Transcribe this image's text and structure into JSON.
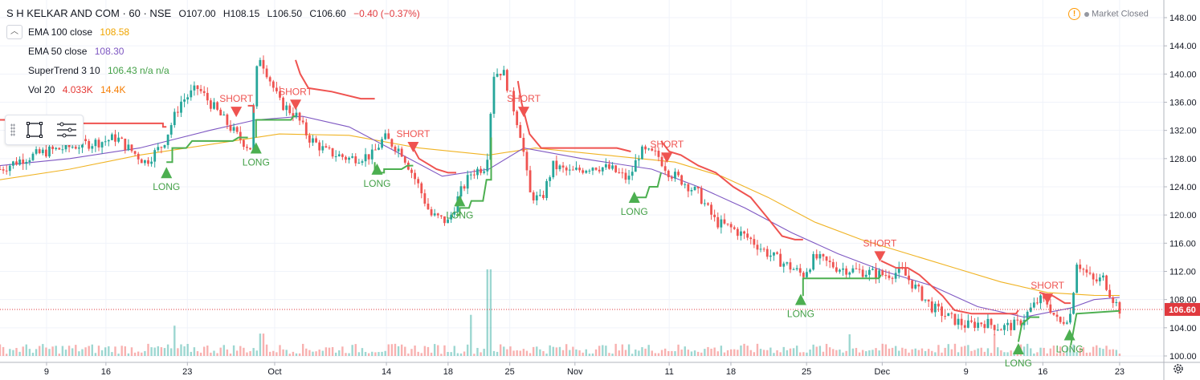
{
  "header": {
    "symbol": "S H KELKAR AND COM · 60 · NSE",
    "open": "O107.00",
    "high": "H108.15",
    "low": "L106.50",
    "close": "C106.60",
    "change": "−0.40 (−0.37%)"
  },
  "indicators": [
    {
      "name": "EMA 100 close",
      "value": "108.58",
      "color": "#f0b323"
    },
    {
      "name": "EMA 50 close",
      "value": "108.30",
      "color": "#7e57c2"
    },
    {
      "name": "SuperTrend 3 10",
      "value": "106.43  n/a  n/a",
      "color": "#4caf50"
    },
    {
      "name": "Vol 20",
      "value": "4.033K",
      "value2": "14.4K",
      "color": "#ef5350",
      "color2": "#ff6d00"
    }
  ],
  "collapse_icon": "chevron-up-icon",
  "toolbar": {
    "icons": [
      "grip-icon",
      "rectangle-select-icon",
      "list-lines-icon"
    ]
  },
  "market_status": {
    "text": "Market Closed",
    "icon": "warning-icon"
  },
  "colors": {
    "up": "#26a69a",
    "down": "#ef5350",
    "supertrend_up": "#4caf50",
    "supertrend_down": "#ef5350",
    "ema100": "#f0b323",
    "ema50": "#7e57c2",
    "last_price": "#e0393e"
  },
  "chart_data": {
    "type": "candlestick",
    "symbol": "S H KELKAR AND COM",
    "interval": "60",
    "exchange": "NSE",
    "last_price": 106.6,
    "ylim": [
      100,
      148
    ],
    "y_ticks": [
      100,
      104,
      108,
      112,
      116,
      120,
      124,
      128,
      132,
      136,
      140,
      144,
      148
    ],
    "y_tick_labels": [
      "100.00",
      "104.00",
      "108.00",
      "112.00",
      "116.00",
      "120.00",
      "124.00",
      "128.00",
      "132.00",
      "136.00",
      "140.00",
      "144.00",
      "148.00"
    ],
    "x_ticks": [
      "9",
      "16",
      "23",
      "Oct",
      "14",
      "18",
      "25",
      "Nov",
      "11",
      "18",
      "25",
      "Dec",
      "9",
      "16",
      "23"
    ],
    "x_tick_positions": [
      0.04,
      0.091,
      0.161,
      0.236,
      0.332,
      0.385,
      0.438,
      0.494,
      0.575,
      0.628,
      0.693,
      0.758,
      0.83,
      0.896,
      0.962
    ],
    "price_path": [
      [
        0.0,
        126.5
      ],
      [
        0.02,
        128
      ],
      [
        0.04,
        129
      ],
      [
        0.07,
        130
      ],
      [
        0.09,
        130.5
      ],
      [
        0.1,
        131
      ],
      [
        0.11,
        129.5
      ],
      [
        0.125,
        127.5
      ],
      [
        0.14,
        130
      ],
      [
        0.155,
        136
      ],
      [
        0.17,
        138
      ],
      [
        0.18,
        136
      ],
      [
        0.195,
        133
      ],
      [
        0.205,
        131
      ],
      [
        0.215,
        129.5
      ],
      [
        0.222,
        143
      ],
      [
        0.23,
        140
      ],
      [
        0.24,
        136
      ],
      [
        0.255,
        134
      ],
      [
        0.265,
        131
      ],
      [
        0.28,
        129
      ],
      [
        0.3,
        128
      ],
      [
        0.32,
        128.5
      ],
      [
        0.33,
        131
      ],
      [
        0.345,
        129
      ],
      [
        0.36,
        124
      ],
      [
        0.37,
        120
      ],
      [
        0.385,
        119
      ],
      [
        0.395,
        123
      ],
      [
        0.405,
        126
      ],
      [
        0.418,
        127
      ],
      [
        0.424,
        140
      ],
      [
        0.432,
        140.5
      ],
      [
        0.44,
        136
      ],
      [
        0.448,
        131
      ],
      [
        0.455,
        123
      ],
      [
        0.465,
        122
      ],
      [
        0.475,
        127
      ],
      [
        0.49,
        126
      ],
      [
        0.51,
        127
      ],
      [
        0.525,
        126.5
      ],
      [
        0.54,
        125
      ],
      [
        0.55,
        129
      ],
      [
        0.565,
        128.5
      ],
      [
        0.575,
        126
      ],
      [
        0.585,
        125
      ],
      [
        0.6,
        123
      ],
      [
        0.615,
        119
      ],
      [
        0.63,
        118
      ],
      [
        0.645,
        116.5
      ],
      [
        0.66,
        114.5
      ],
      [
        0.675,
        113
      ],
      [
        0.69,
        111.5
      ],
      [
        0.7,
        114
      ],
      [
        0.72,
        112.5
      ],
      [
        0.74,
        112
      ],
      [
        0.76,
        111.5
      ],
      [
        0.775,
        112
      ],
      [
        0.79,
        109
      ],
      [
        0.8,
        107
      ],
      [
        0.815,
        105.5
      ],
      [
        0.83,
        104.3
      ],
      [
        0.845,
        104.8
      ],
      [
        0.86,
        104
      ],
      [
        0.875,
        104.5
      ],
      [
        0.885,
        106.5
      ],
      [
        0.893,
        108
      ],
      [
        0.9,
        107.5
      ],
      [
        0.91,
        104.5
      ],
      [
        0.92,
        106
      ],
      [
        0.925,
        113.5
      ],
      [
        0.932,
        112
      ],
      [
        0.94,
        110.5
      ],
      [
        0.948,
        111
      ],
      [
        0.955,
        108.5
      ],
      [
        0.962,
        106.6
      ]
    ],
    "volume_spikes": [
      [
        0.15,
        4.2
      ],
      [
        0.225,
        3.1
      ],
      [
        0.42,
        12
      ],
      [
        0.405,
        5.7
      ],
      [
        0.73,
        3
      ],
      [
        0.855,
        3
      ]
    ],
    "series": [
      {
        "name": "EMA 100 close",
        "color": "#f0b323",
        "values": [
          [
            0.0,
            125
          ],
          [
            0.06,
            126.5
          ],
          [
            0.12,
            128.5
          ],
          [
            0.18,
            130
          ],
          [
            0.24,
            131.5
          ],
          [
            0.3,
            131.3
          ],
          [
            0.36,
            129.5
          ],
          [
            0.42,
            128.5
          ],
          [
            0.46,
            129.5
          ],
          [
            0.52,
            128.5
          ],
          [
            0.58,
            127.5
          ],
          [
            0.62,
            125.5
          ],
          [
            0.66,
            122.5
          ],
          [
            0.7,
            119
          ],
          [
            0.74,
            116.5
          ],
          [
            0.78,
            114.5
          ],
          [
            0.82,
            112.5
          ],
          [
            0.86,
            110.5
          ],
          [
            0.9,
            109
          ],
          [
            0.94,
            108.6
          ],
          [
            0.962,
            108.58
          ]
        ]
      },
      {
        "name": "EMA 50 close",
        "color": "#7e57c2",
        "values": [
          [
            0.0,
            127
          ],
          [
            0.06,
            128
          ],
          [
            0.12,
            129.5
          ],
          [
            0.18,
            132
          ],
          [
            0.22,
            133.5
          ],
          [
            0.26,
            134
          ],
          [
            0.3,
            132.5
          ],
          [
            0.34,
            129
          ],
          [
            0.38,
            125.5
          ],
          [
            0.42,
            126.5
          ],
          [
            0.45,
            129.5
          ],
          [
            0.5,
            128
          ],
          [
            0.56,
            126.5
          ],
          [
            0.6,
            124
          ],
          [
            0.64,
            121
          ],
          [
            0.68,
            117.5
          ],
          [
            0.72,
            114.5
          ],
          [
            0.76,
            112
          ],
          [
            0.8,
            110
          ],
          [
            0.84,
            107
          ],
          [
            0.88,
            105.5
          ],
          [
            0.92,
            106.8
          ],
          [
            0.94,
            108
          ],
          [
            0.962,
            108.3
          ]
        ]
      },
      {
        "name": "SuperTrend 3 10",
        "segments": [
          {
            "trend": "up",
            "points": [
              [
                0.143,
                127.5
              ],
              [
                0.148,
                127.5
              ],
              [
                0.148,
                129.5
              ],
              [
                0.16,
                129.5
              ],
              [
                0.165,
                130.5
              ],
              [
                0.2,
                130.5
              ],
              [
                0.205,
                131
              ],
              [
                0.213,
                131
              ]
            ]
          },
          {
            "trend": "down",
            "points": [
              [
                0.0,
                133.5
              ],
              [
                0.06,
                133.5
              ],
              [
                0.07,
                133
              ],
              [
                0.14,
                133
              ],
              [
                0.14,
                132.5
              ],
              [
                0.143,
                132.5
              ]
            ]
          },
          {
            "trend": "up",
            "points": [
              [
                0.22,
                131
              ],
              [
                0.22,
                133.5
              ],
              [
                0.25,
                133.5
              ],
              [
                0.252,
                134
              ],
              [
                0.254,
                134
              ]
            ]
          },
          {
            "trend": "down",
            "points": [
              [
                0.213,
                135.5
              ],
              [
                0.218,
                135.5
              ],
              [
                0.218,
                134.5
              ]
            ]
          },
          {
            "trend": "down",
            "points": [
              [
                0.254,
                142
              ],
              [
                0.258,
                140
              ],
              [
                0.265,
                138
              ],
              [
                0.285,
                137.5
              ],
              [
                0.31,
                136.5
              ],
              [
                0.322,
                136.5
              ]
            ]
          },
          {
            "trend": "up",
            "points": [
              [
                0.322,
                127.5
              ],
              [
                0.322,
                126
              ],
              [
                0.33,
                126
              ],
              [
                0.33,
                126.5
              ],
              [
                0.345,
                126.5
              ],
              [
                0.35,
                127
              ],
              [
                0.355,
                127
              ]
            ]
          },
          {
            "trend": "down",
            "points": [
              [
                0.355,
                129.5
              ],
              [
                0.36,
                128
              ],
              [
                0.365,
                127.5
              ],
              [
                0.375,
                126.5
              ],
              [
                0.385,
                126
              ],
              [
                0.392,
                126
              ]
            ]
          },
          {
            "trend": "up",
            "points": [
              [
                0.392,
                120
              ],
              [
                0.395,
                120
              ],
              [
                0.395,
                121
              ],
              [
                0.403,
                121
              ],
              [
                0.405,
                122
              ],
              [
                0.415,
                122
              ],
              [
                0.418,
                125
              ],
              [
                0.422,
                125
              ],
              [
                0.422,
                131
              ]
            ]
          },
          {
            "trend": "down",
            "points": [
              [
                0.445,
                139
              ],
              [
                0.448,
                136
              ],
              [
                0.455,
                131.5
              ],
              [
                0.465,
                129.5
              ],
              [
                0.53,
                129.5
              ],
              [
                0.542,
                129
              ]
            ]
          },
          {
            "trend": "up",
            "points": [
              [
                0.542,
                122
              ],
              [
                0.545,
                122.5
              ],
              [
                0.555,
                122.5
              ],
              [
                0.558,
                124
              ],
              [
                0.565,
                124
              ],
              [
                0.568,
                126
              ]
            ]
          },
          {
            "trend": "down",
            "points": [
              [
                0.568,
                130.5
              ],
              [
                0.575,
                129
              ],
              [
                0.585,
                128.5
              ],
              [
                0.6,
                127
              ],
              [
                0.615,
                126
              ],
              [
                0.63,
                124
              ],
              [
                0.645,
                122.5
              ],
              [
                0.66,
                119.5
              ],
              [
                0.672,
                117
              ],
              [
                0.683,
                116.5
              ],
              [
                0.69,
                116.5
              ]
            ]
          },
          {
            "trend": "up",
            "points": [
              [
                0.69,
                108.5
              ],
              [
                0.69,
                111
              ],
              [
                0.755,
                111
              ],
              [
                0.757,
                111.5
              ]
            ]
          },
          {
            "trend": "down",
            "points": [
              [
                0.757,
                113.5
              ],
              [
                0.77,
                112.5
              ],
              [
                0.78,
                112.5
              ],
              [
                0.79,
                111.5
              ],
              [
                0.8,
                110
              ],
              [
                0.81,
                108.5
              ],
              [
                0.82,
                106.5
              ],
              [
                0.835,
                106
              ],
              [
                0.873,
                106
              ],
              [
                0.875,
                106.5
              ]
            ]
          },
          {
            "trend": "up",
            "points": [
              [
                0.875,
                102
              ],
              [
                0.878,
                104.5
              ],
              [
                0.885,
                105.5
              ],
              [
                0.893,
                105.5
              ]
            ]
          },
          {
            "trend": "down",
            "points": [
              [
                0.893,
                109
              ],
              [
                0.905,
                108.5
              ],
              [
                0.915,
                107.5
              ],
              [
                0.92,
                107.5
              ]
            ]
          },
          {
            "trend": "up",
            "points": [
              [
                0.92,
                101.5
              ],
              [
                0.925,
                106
              ],
              [
                0.962,
                106.4
              ]
            ]
          }
        ]
      }
    ],
    "signals": [
      {
        "type": "LONG",
        "x": 0.143,
        "price": 127.5
      },
      {
        "type": "SHORT",
        "x": 0.203,
        "price": 134
      },
      {
        "type": "LONG",
        "x": 0.22,
        "price": 131
      },
      {
        "type": "SHORT",
        "x": 0.254,
        "price": 135
      },
      {
        "type": "LONG",
        "x": 0.324,
        "price": 128
      },
      {
        "type": "SHORT",
        "x": 0.355,
        "price": 129
      },
      {
        "type": "LONG",
        "x": 0.395,
        "price": 123.5
      },
      {
        "type": "SHORT",
        "x": 0.45,
        "price": 134
      },
      {
        "type": "LONG",
        "x": 0.545,
        "price": 124
      },
      {
        "type": "SHORT",
        "x": 0.573,
        "price": 127.5
      },
      {
        "type": "LONG",
        "x": 0.688,
        "price": 109.5
      },
      {
        "type": "SHORT",
        "x": 0.756,
        "price": 113.5
      },
      {
        "type": "LONG",
        "x": 0.875,
        "price": 102.5
      },
      {
        "type": "SHORT",
        "x": 0.9,
        "price": 107.5
      },
      {
        "type": "LONG",
        "x": 0.919,
        "price": 104.5
      }
    ]
  }
}
